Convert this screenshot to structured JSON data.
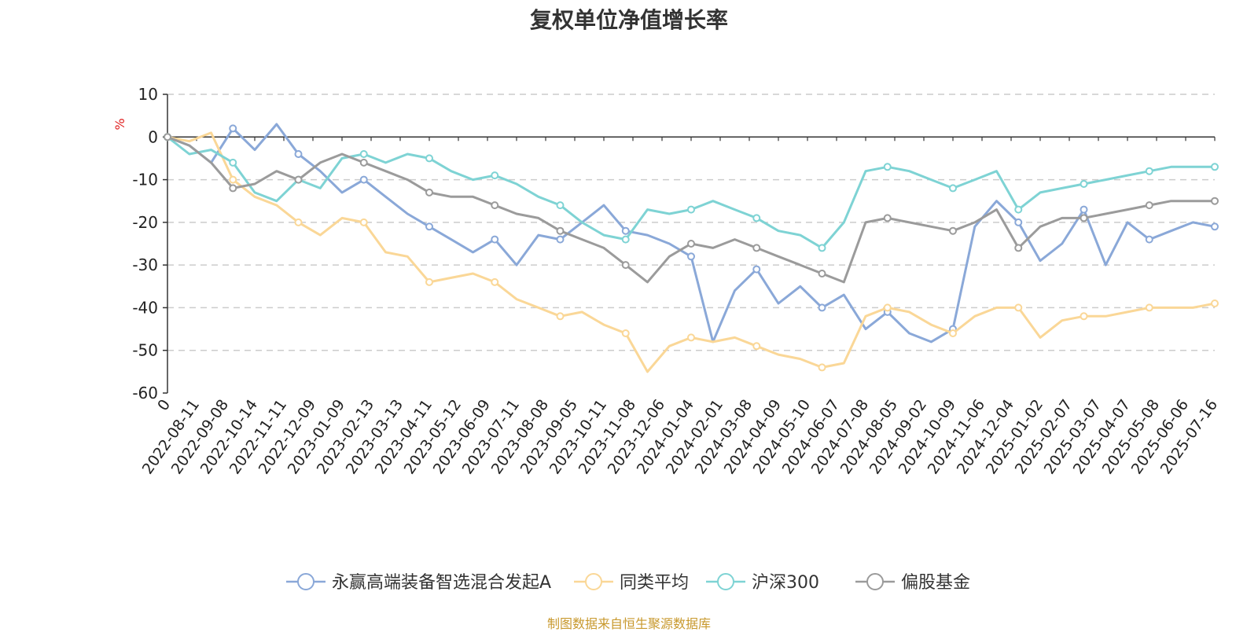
{
  "chart_data": {
    "type": "line",
    "title": "复权单位净值增长率",
    "ylabel": "%",
    "xlabel": "",
    "ylim": [
      -60,
      10
    ],
    "yticks": [
      10,
      0,
      -10,
      -20,
      -30,
      -40,
      -50,
      -60
    ],
    "x_origin_label": "0",
    "x_tick_labels": [
      "2022-08-11",
      "2022-09-08",
      "2022-10-14",
      "2022-11-11",
      "2022-12-09",
      "2023-01-09",
      "2023-02-13",
      "2023-03-13",
      "2023-04-11",
      "2023-05-12",
      "2023-06-09",
      "2023-07-11",
      "2023-08-08",
      "2023-09-05",
      "2023-10-11",
      "2023-11-08",
      "2023-12-06",
      "2024-01-04",
      "2024-02-01",
      "2024-03-08",
      "2024-04-09",
      "2024-05-10",
      "2024-06-07",
      "2024-07-08",
      "2024-08-05",
      "2024-09-02",
      "2024-10-09",
      "2024-11-06",
      "2024-12-04",
      "2025-01-02",
      "2025-02-07",
      "2025-03-07",
      "2025-04-07",
      "2025-05-08",
      "2025-06-06",
      "2025-07-16"
    ],
    "grid": true,
    "legend_position": "bottom",
    "series": [
      {
        "name": "永赢高端装备智选混合发起A",
        "color": "#8aa8d8",
        "values": [
          0,
          -2,
          -6,
          2,
          -3,
          3,
          -4,
          -8,
          -13,
          -10,
          -14,
          -18,
          -21,
          -24,
          -27,
          -24,
          -30,
          -23,
          -24,
          -20,
          -16,
          -22,
          -23,
          -25,
          -28,
          -48,
          -36,
          -31,
          -39,
          -35,
          -40,
          -37,
          -45,
          -41,
          -46,
          -48,
          -45,
          -21,
          -15,
          -20,
          -29,
          -25,
          -17,
          -30,
          -20,
          -24,
          -22,
          -20,
          -21
        ]
      },
      {
        "name": "同类平均",
        "color": "#fad797",
        "values": [
          0,
          -1,
          1,
          -10,
          -14,
          -16,
          -20,
          -23,
          -19,
          -20,
          -27,
          -28,
          -34,
          -33,
          -32,
          -34,
          -38,
          -40,
          -42,
          -41,
          -44,
          -46,
          -55,
          -49,
          -47,
          -48,
          -47,
          -49,
          -51,
          -52,
          -54,
          -53,
          -42,
          -40,
          -41,
          -44,
          -46,
          -42,
          -40,
          -40,
          -47,
          -43,
          -42,
          -42,
          -41,
          -40,
          -40,
          -40,
          -39
        ]
      },
      {
        "name": "沪深300",
        "color": "#7ed3d4",
        "values": [
          0,
          -4,
          -3,
          -6,
          -13,
          -15,
          -10,
          -12,
          -5,
          -4,
          -6,
          -4,
          -5,
          -8,
          -10,
          -9,
          -11,
          -14,
          -16,
          -20,
          -23,
          -24,
          -17,
          -18,
          -17,
          -15,
          -17,
          -19,
          -22,
          -23,
          -26,
          -20,
          -8,
          -7,
          -8,
          -10,
          -12,
          -10,
          -8,
          -17,
          -13,
          -12,
          -11,
          -10,
          -9,
          -8,
          -7,
          -7,
          -7
        ]
      },
      {
        "name": "偏股基金",
        "color": "#9b9b9b",
        "values": [
          0,
          -2,
          -6,
          -12,
          -11,
          -8,
          -10,
          -6,
          -4,
          -6,
          -8,
          -10,
          -13,
          -14,
          -14,
          -16,
          -18,
          -19,
          -22,
          -24,
          -26,
          -30,
          -34,
          -28,
          -25,
          -26,
          -24,
          -26,
          -28,
          -30,
          -32,
          -34,
          -20,
          -19,
          -20,
          -21,
          -22,
          -20,
          -17,
          -26,
          -21,
          -19,
          -19,
          -18,
          -17,
          -16,
          -15,
          -15,
          -15
        ]
      }
    ]
  },
  "source_note": "制图数据来自恒生聚源数据库"
}
